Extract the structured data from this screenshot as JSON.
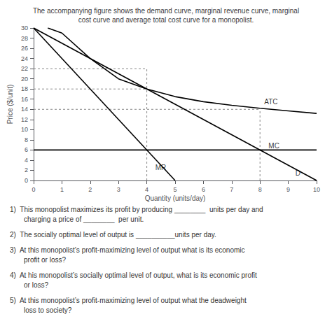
{
  "chart_data": {
    "type": "line",
    "title": [
      "The accompanying figure shows the demand curve, marginal revenue curve, marginal",
      "cost curve and average total cost curve for a monopolist."
    ],
    "xlabel": "Quantity (units/day)",
    "ylabel": "Price ($/unit)",
    "xlim": [
      0,
      10
    ],
    "ylim": [
      0,
      30
    ],
    "xticks": [
      0,
      1,
      2,
      3,
      4,
      5,
      6,
      7,
      8,
      9,
      10
    ],
    "yticks": [
      0,
      2,
      4,
      6,
      8,
      10,
      12,
      14,
      16,
      18,
      20,
      22,
      24,
      26,
      28,
      30
    ],
    "grid": false,
    "series": [
      {
        "x": [
          0,
          10
        ],
        "values": [
          30,
          0
        ],
        "color": "#000000",
        "line_style": "solid"
      },
      {
        "x": [
          0,
          5
        ],
        "values": [
          30,
          0
        ],
        "color": "#000000",
        "line_style": "solid"
      },
      {
        "x": [
          0,
          10
        ],
        "values": [
          6,
          6
        ],
        "color": "#000000",
        "line_style": "solid"
      },
      {
        "x": [
          0.5,
          1.0,
          2.0,
          3.0,
          4.0,
          5.0,
          6.0,
          7.0,
          8.0,
          9.0,
          10.0
        ],
        "values": [
          30,
          29,
          24,
          20,
          18,
          16.5,
          15.5,
          14.8,
          14.2,
          13.7,
          13.2
        ],
        "color": "#000000",
        "line_style": "solid"
      },
      {
        "x": [
          4,
          4
        ],
        "values": [
          0,
          22
        ],
        "color": "#888888",
        "line_style": "dashed"
      },
      {
        "x": [
          0,
          4
        ],
        "values": [
          22,
          22
        ],
        "color": "#888888",
        "line_style": "dashed"
      },
      {
        "x": [
          0,
          4
        ],
        "values": [
          18,
          18
        ],
        "color": "#888888",
        "line_style": "dashed"
      },
      {
        "x": [
          0,
          8
        ],
        "values": [
          14,
          14
        ],
        "color": "#888888",
        "line_style": "dashed"
      },
      {
        "x": [
          8,
          8
        ],
        "values": [
          0,
          14
        ],
        "color": "#888888",
        "line_style": "dashed"
      }
    ],
    "annotations": [
      {
        "text": "MR",
        "x": 4.3,
        "y": 2.5
      },
      {
        "text": "D",
        "x": 9.25,
        "y": 1.5
      },
      {
        "text": "ATC",
        "x": 8.15,
        "y": 15.5
      },
      {
        "text": "MC",
        "x": 8.3,
        "y": 6.8
      }
    ],
    "questions": [
      [
        "1)  This monopolist maximizes its profit by producing ________  units per day and",
        "charging a price of ________  per unit."
      ],
      [
        "2)  The socially optimal level of output is __________units per day."
      ],
      [
        "3)  At this monopolist’s profit-maximizing level of output what is its economic",
        "profit or loss?"
      ],
      [
        "4)  At his monopolist’s socially optimal level of output, what is its economic profit",
        "or loss?"
      ],
      [
        "5)  At this monopolist’s profit-maximizing level of output what the deadweight",
        "loss to society?"
      ]
    ]
  }
}
